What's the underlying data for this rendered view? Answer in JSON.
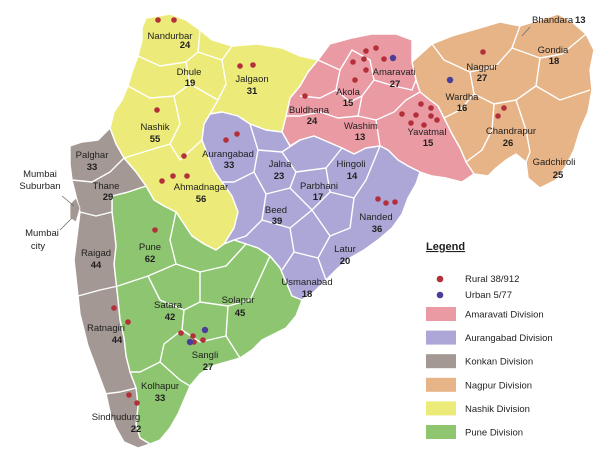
{
  "colors": {
    "amaravati": "#e99aa3",
    "aurangabad": "#aca7d6",
    "konkan": "#a39893",
    "nagpur": "#e6b487",
    "nashik": "#ecea79",
    "pune": "#8ec571",
    "rural_dot": "#b3303b",
    "urban_dot": "#4b3e9b"
  },
  "districts": {
    "nandurbar": {
      "name": "Nandurbar",
      "count": "24"
    },
    "dhule": {
      "name": "Dhule",
      "count": "19"
    },
    "jalgaon": {
      "name": "Jalgaon",
      "count": "31"
    },
    "nashik": {
      "name": "Nashik",
      "count": "55"
    },
    "ahmadnagar": {
      "name": "Ahmadnagar",
      "count": "56"
    },
    "buldhana": {
      "name": "Buldhana",
      "count": "24"
    },
    "akola": {
      "name": "Akola",
      "count": "15"
    },
    "amaravati": {
      "name": "Amaravati",
      "count": "27"
    },
    "washim": {
      "name": "Washim",
      "count": "13"
    },
    "yavatmal": {
      "name": "Yavatmal",
      "count": "15"
    },
    "bhandara": {
      "name": "Bhandara",
      "count": "13"
    },
    "gondia": {
      "name": "Gondia",
      "count": "18"
    },
    "nagpur": {
      "name": "Nagpur",
      "count": "27"
    },
    "wardha": {
      "name": "Wardha",
      "count": "16"
    },
    "chandrapur": {
      "name": "Chandrapur",
      "count": "26"
    },
    "gadchiroli": {
      "name": "Gadchiroli",
      "count": "25"
    },
    "aurangabad": {
      "name": "Aurangabad",
      "count": "33"
    },
    "jalna": {
      "name": "Jalna",
      "count": "23"
    },
    "hingoli": {
      "name": "Hingoli",
      "count": "14"
    },
    "parbhani": {
      "name": "Parbhani",
      "count": "17"
    },
    "beed": {
      "name": "Beed",
      "count": "39"
    },
    "nanded": {
      "name": "Nanded",
      "count": "36"
    },
    "latur": {
      "name": "Latur",
      "count": "20"
    },
    "usmanabad": {
      "name": "Usmanabad",
      "count": "18"
    },
    "palghar": {
      "name": "Palghar",
      "count": "33"
    },
    "mumbai_suburban": {
      "name_line1": "Mumbai",
      "name_line2": "Suburban"
    },
    "thane": {
      "name": "Thane",
      "count": "29"
    },
    "mumbai_city": {
      "name_line1": "Mumbai",
      "name_line2": "city"
    },
    "raigad": {
      "name": "Raigad",
      "count": "44"
    },
    "pune": {
      "name": "Pune",
      "count": "62"
    },
    "satara": {
      "name": "Satara",
      "count": "42"
    },
    "solapur": {
      "name": "Solapur",
      "count": "45"
    },
    "sangli": {
      "name": "Sangli",
      "count": "27"
    },
    "ratnagiri": {
      "name": "Ratnagiri",
      "count": "44"
    },
    "kolhapur": {
      "name": "Kolhapur",
      "count": "33"
    },
    "sindhudurg": {
      "name": "Sindhudurg",
      "count": "22"
    }
  },
  "legend": {
    "title": "Legend",
    "rural": "Rural 38/912",
    "urban": "Urban 5/77",
    "items": [
      {
        "label": "Amaravati Division",
        "color": "#e99aa3"
      },
      {
        "label": "Aurangabad Division",
        "color": "#aca7d6"
      },
      {
        "label": "Konkan Division",
        "color": "#a39893"
      },
      {
        "label": "Nagpur Division",
        "color": "#e6b487"
      },
      {
        "label": "Nashik Division",
        "color": "#ecea79"
      },
      {
        "label": "Pune Division",
        "color": "#8ec571"
      }
    ]
  }
}
